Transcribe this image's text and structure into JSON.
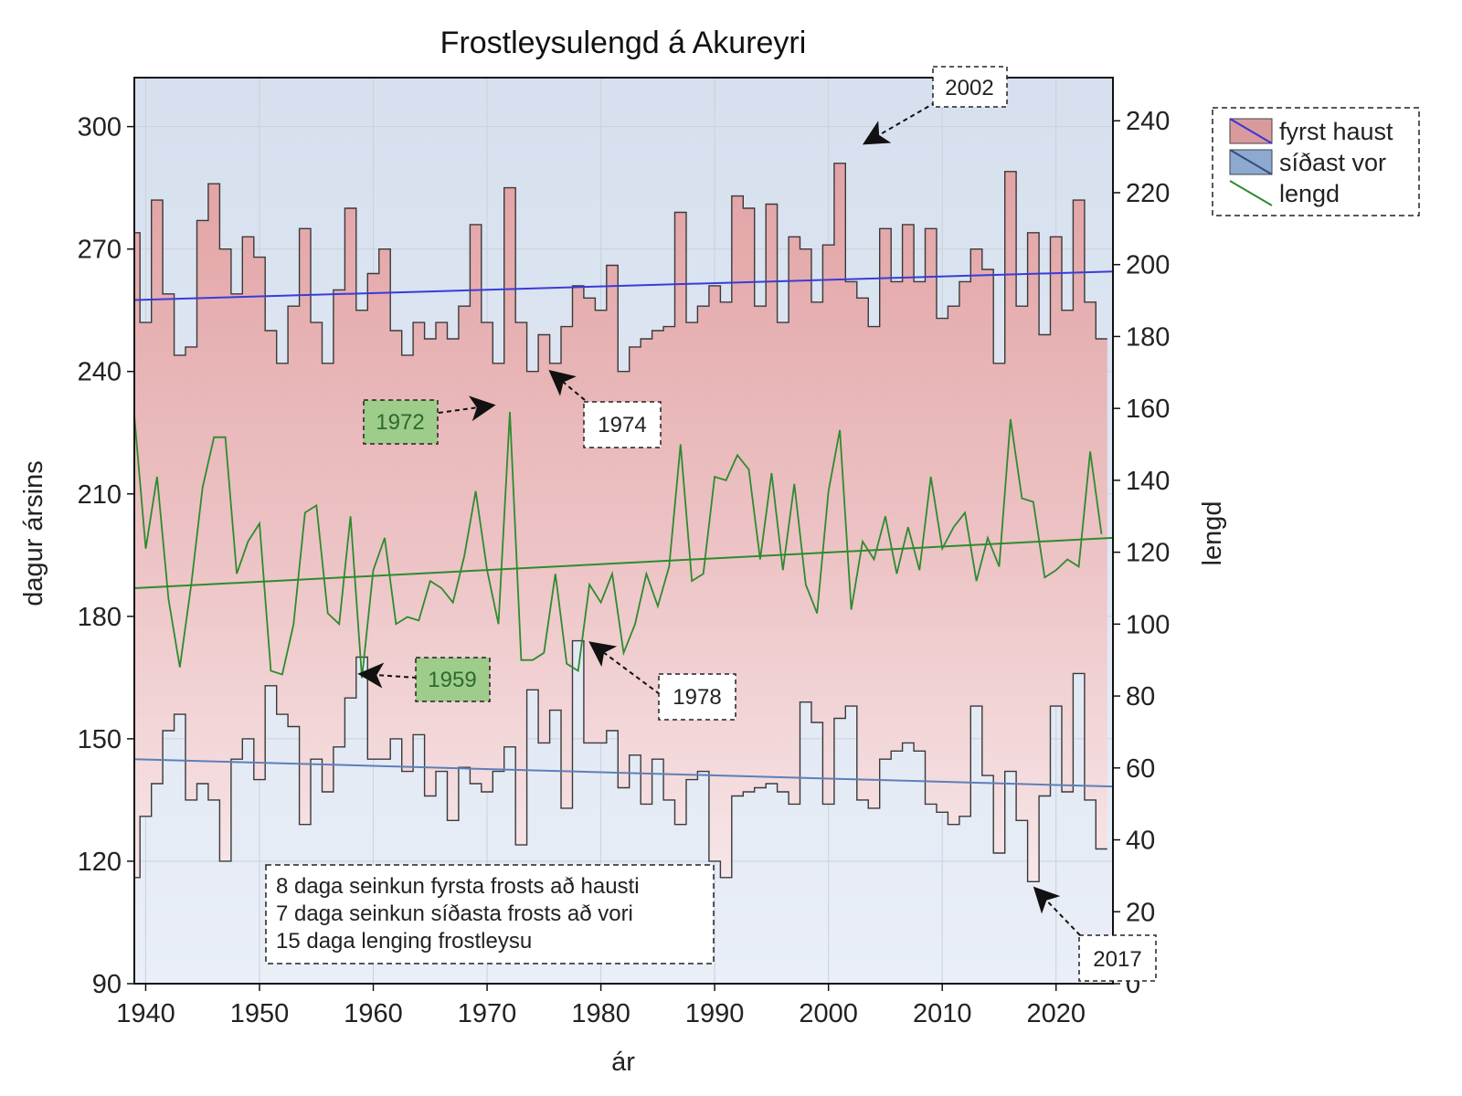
{
  "chart_data": {
    "type": "line",
    "title": "Frostleysulengd á Akureyri",
    "xlabel": "ár",
    "ylabel": "dagur ársins",
    "y2label": "lengd",
    "xlim": [
      1939,
      2025
    ],
    "ylim": [
      90,
      312
    ],
    "y2lim": [
      0,
      252
    ],
    "x_ticks": [
      1940,
      1950,
      1960,
      1970,
      1980,
      1990,
      2000,
      2010,
      2020
    ],
    "y_ticks": [
      90,
      120,
      150,
      180,
      210,
      240,
      270,
      300
    ],
    "y2_ticks": [
      0,
      20,
      40,
      60,
      80,
      100,
      120,
      140,
      160,
      180,
      200,
      220,
      240
    ],
    "grid": true,
    "legend_position": "top-right outside",
    "years": [
      1939,
      1940,
      1941,
      1942,
      1943,
      1944,
      1945,
      1946,
      1947,
      1948,
      1949,
      1950,
      1951,
      1952,
      1953,
      1954,
      1955,
      1956,
      1957,
      1958,
      1959,
      1960,
      1961,
      1962,
      1963,
      1964,
      1965,
      1966,
      1967,
      1968,
      1969,
      1970,
      1971,
      1972,
      1973,
      1974,
      1975,
      1976,
      1977,
      1978,
      1979,
      1980,
      1981,
      1982,
      1983,
      1984,
      1985,
      1986,
      1987,
      1988,
      1989,
      1990,
      1991,
      1992,
      1993,
      1994,
      1995,
      1996,
      1997,
      1998,
      1999,
      2000,
      2001,
      2002,
      2003,
      2004,
      2005,
      2006,
      2007,
      2008,
      2009,
      2010,
      2011,
      2012,
      2013,
      2014,
      2015,
      2016,
      2017,
      2018,
      2019,
      2020,
      2021,
      2022,
      2023,
      2024
    ],
    "series": [
      {
        "name": "fyrst haust",
        "axis": "left",
        "color": "#d99a9e",
        "values": [
          274,
          252,
          282,
          259,
          244,
          246,
          277,
          286,
          270,
          259,
          273,
          268,
          250,
          242,
          256,
          275,
          252,
          242,
          260,
          280,
          255,
          264,
          270,
          250,
          244,
          252,
          248,
          252,
          248,
          256,
          276,
          252,
          242,
          285,
          252,
          240,
          249,
          242,
          251,
          261,
          258,
          255,
          266,
          240,
          246,
          248,
          250,
          251,
          279,
          252,
          256,
          261,
          257,
          283,
          280,
          256,
          281,
          252,
          273,
          270,
          257,
          271,
          291,
          262,
          258,
          251,
          275,
          262,
          276,
          262,
          275,
          253,
          256,
          262,
          270,
          265,
          242,
          289,
          256,
          274,
          249,
          273,
          255,
          282,
          257,
          248
        ],
        "trend": [
          257.5,
          264.5
        ]
      },
      {
        "name": "síðast vor",
        "axis": "left",
        "color": "#8ea9cf",
        "values": [
          116,
          131,
          139,
          152,
          156,
          135,
          139,
          135,
          120,
          145,
          150,
          140,
          163,
          156,
          153,
          129,
          145,
          137,
          148,
          160,
          170,
          145,
          145,
          150,
          142,
          151,
          136,
          142,
          130,
          143,
          139,
          137,
          142,
          148,
          124,
          162,
          149,
          157,
          133,
          174,
          149,
          149,
          152,
          138,
          146,
          134,
          145,
          135,
          129,
          140,
          142,
          120,
          116,
          136,
          137,
          138,
          139,
          137,
          134,
          159,
          154,
          134,
          155,
          158,
          135,
          133,
          145,
          147,
          149,
          147,
          134,
          132,
          129,
          131,
          158,
          141,
          122,
          142,
          130,
          115,
          136,
          158,
          137,
          166,
          135,
          123
        ],
        "trend": [
          145,
          138.3
        ]
      },
      {
        "name": "lengd",
        "axis": "right",
        "color": "#2e8b2e",
        "values": [
          158,
          121,
          141,
          107,
          88,
          111,
          138,
          152,
          152,
          114,
          123,
          128,
          87,
          86,
          100,
          131,
          133,
          103,
          100,
          130,
          85,
          115,
          124,
          100,
          102,
          101,
          112,
          110,
          106,
          119,
          137,
          115,
          100,
          159,
          90,
          90,
          92,
          114,
          89,
          87,
          111,
          106,
          114,
          92,
          100,
          114,
          105,
          116,
          150,
          112,
          114,
          141,
          140,
          147,
          143,
          118,
          142,
          115,
          139,
          111,
          103,
          137,
          154,
          104,
          123,
          118,
          130,
          114,
          127,
          115,
          141,
          121,
          127,
          131,
          112,
          124,
          116,
          157,
          135,
          134,
          113,
          115,
          118,
          116,
          148,
          125
        ],
        "trend": [
          110,
          124
        ]
      }
    ],
    "annotations": [
      "2002",
      "1972",
      "1974",
      "1959",
      "1978",
      "2017"
    ],
    "note_lines": [
      "8 daga seinkun fyrsta frosts að hausti",
      "7 daga seinkun síðasta frosts að vori",
      "15 daga lenging frostleysu"
    ]
  }
}
